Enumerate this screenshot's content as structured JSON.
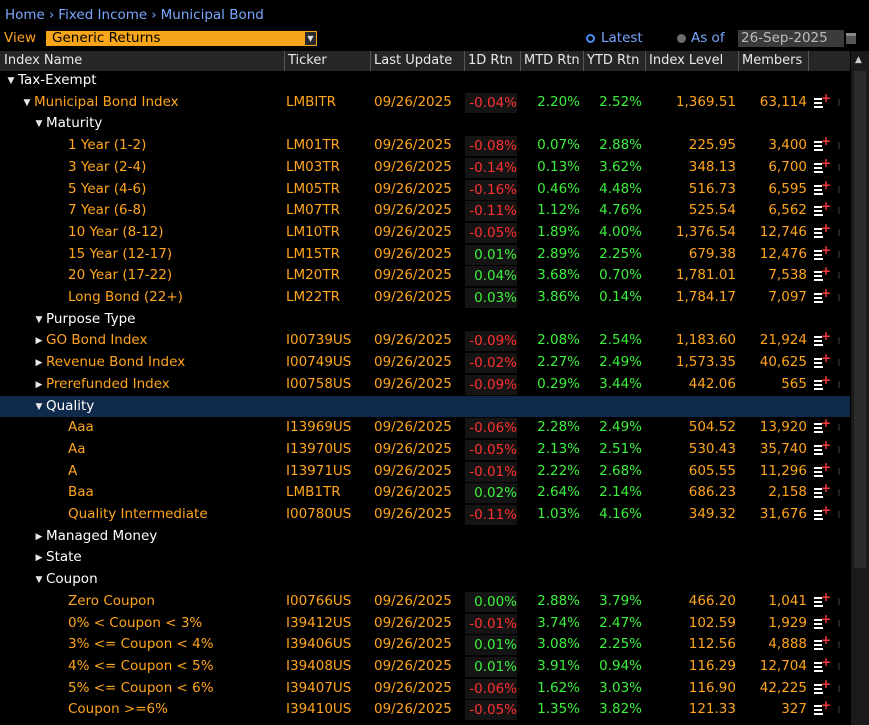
{
  "breadcrumb": [
    "Home",
    "Fixed Income",
    "Municipal Bond"
  ],
  "breadcrumb_sep": "›",
  "view": {
    "label": "View",
    "selected": "Generic Returns",
    "latest_label": "Latest",
    "asof_label": "As of",
    "date": "26-Sep-2025",
    "mode": "Latest"
  },
  "columns": [
    "Index Name",
    "Ticker",
    "Last Update",
    "1D Rtn",
    "MTD Rtn",
    "YTD Rtn",
    "Index Level",
    "Members"
  ],
  "colors": {
    "accent": "#ffa51e",
    "positive": "#3cf03c",
    "negative": "#ff3030",
    "link": "#7aa6ff",
    "selected": "#0f2a4a"
  },
  "rows": [
    {
      "level": 0,
      "type": "group",
      "expand": "down",
      "name": "Tax-Exempt"
    },
    {
      "level": 1,
      "type": "data",
      "expand": "down",
      "name": "Municipal Bond Index",
      "ticker": "LMBITR",
      "date": "09/26/2025",
      "d1": "-0.04%",
      "mtd": "2.20%",
      "ytd": "2.52%",
      "level_val": "1,369.51",
      "members": "63,114"
    },
    {
      "level": 2,
      "type": "group",
      "expand": "down",
      "name": "Maturity"
    },
    {
      "level": 3,
      "type": "data",
      "expand": "",
      "name": "1 Year (1-2)",
      "ticker": "LM01TR",
      "date": "09/26/2025",
      "d1": "-0.08%",
      "mtd": "0.07%",
      "ytd": "2.88%",
      "level_val": "225.95",
      "members": "3,400"
    },
    {
      "level": 3,
      "type": "data",
      "expand": "",
      "name": "3 Year (2-4)",
      "ticker": "LM03TR",
      "date": "09/26/2025",
      "d1": "-0.14%",
      "mtd": "0.13%",
      "ytd": "3.62%",
      "level_val": "348.13",
      "members": "6,700"
    },
    {
      "level": 3,
      "type": "data",
      "expand": "",
      "name": "5 Year (4-6)",
      "ticker": "LM05TR",
      "date": "09/26/2025",
      "d1": "-0.16%",
      "mtd": "0.46%",
      "ytd": "4.48%",
      "level_val": "516.73",
      "members": "6,595"
    },
    {
      "level": 3,
      "type": "data",
      "expand": "",
      "name": "7 Year (6-8)",
      "ticker": "LM07TR",
      "date": "09/26/2025",
      "d1": "-0.11%",
      "mtd": "1.12%",
      "ytd": "4.76%",
      "level_val": "525.54",
      "members": "6,562"
    },
    {
      "level": 3,
      "type": "data",
      "expand": "",
      "name": "10 Year (8-12)",
      "ticker": "LM10TR",
      "date": "09/26/2025",
      "d1": "-0.05%",
      "mtd": "1.89%",
      "ytd": "4.00%",
      "level_val": "1,376.54",
      "members": "12,746"
    },
    {
      "level": 3,
      "type": "data",
      "expand": "",
      "name": "15 Year (12-17)",
      "ticker": "LM15TR",
      "date": "09/26/2025",
      "d1": "0.01%",
      "mtd": "2.89%",
      "ytd": "2.25%",
      "level_val": "679.38",
      "members": "12,476"
    },
    {
      "level": 3,
      "type": "data",
      "expand": "",
      "name": "20 Year (17-22)",
      "ticker": "LM20TR",
      "date": "09/26/2025",
      "d1": "0.04%",
      "mtd": "3.68%",
      "ytd": "0.70%",
      "level_val": "1,781.01",
      "members": "7,538"
    },
    {
      "level": 3,
      "type": "data",
      "expand": "",
      "name": "Long Bond (22+)",
      "ticker": "LM22TR",
      "date": "09/26/2025",
      "d1": "0.03%",
      "mtd": "3.86%",
      "ytd": "0.14%",
      "level_val": "1,784.17",
      "members": "7,097"
    },
    {
      "level": 2,
      "type": "group",
      "expand": "down",
      "name": "Purpose Type"
    },
    {
      "level": 2,
      "type": "data",
      "expand": "right",
      "name": "GO Bond Index",
      "ticker": "I00739US",
      "date": "09/26/2025",
      "d1": "-0.09%",
      "mtd": "2.08%",
      "ytd": "2.54%",
      "level_val": "1,183.60",
      "members": "21,924"
    },
    {
      "level": 2,
      "type": "data",
      "expand": "right",
      "name": "Revenue Bond Index",
      "ticker": "I00749US",
      "date": "09/26/2025",
      "d1": "-0.02%",
      "mtd": "2.27%",
      "ytd": "2.49%",
      "level_val": "1,573.35",
      "members": "40,625"
    },
    {
      "level": 2,
      "type": "data",
      "expand": "right",
      "name": "Prerefunded Index",
      "ticker": "I00758US",
      "date": "09/26/2025",
      "d1": "-0.09%",
      "mtd": "0.29%",
      "ytd": "3.44%",
      "level_val": "442.06",
      "members": "565"
    },
    {
      "level": 2,
      "type": "group",
      "expand": "down",
      "name": "Quality",
      "selected": true
    },
    {
      "level": 3,
      "type": "data",
      "expand": "",
      "name": "Aaa",
      "ticker": "I13969US",
      "date": "09/26/2025",
      "d1": "-0.06%",
      "mtd": "2.28%",
      "ytd": "2.49%",
      "level_val": "504.52",
      "members": "13,920"
    },
    {
      "level": 3,
      "type": "data",
      "expand": "",
      "name": "Aa",
      "ticker": "I13970US",
      "date": "09/26/2025",
      "d1": "-0.05%",
      "mtd": "2.13%",
      "ytd": "2.51%",
      "level_val": "530.43",
      "members": "35,740"
    },
    {
      "level": 3,
      "type": "data",
      "expand": "",
      "name": "A",
      "ticker": "I13971US",
      "date": "09/26/2025",
      "d1": "-0.01%",
      "mtd": "2.22%",
      "ytd": "2.68%",
      "level_val": "605.55",
      "members": "11,296"
    },
    {
      "level": 3,
      "type": "data",
      "expand": "",
      "name": "Baa",
      "ticker": "LMB1TR",
      "date": "09/26/2025",
      "d1": "0.02%",
      "mtd": "2.64%",
      "ytd": "2.14%",
      "level_val": "686.23",
      "members": "2,158"
    },
    {
      "level": 3,
      "type": "data",
      "expand": "",
      "name": "Quality Intermediate",
      "ticker": "I00780US",
      "date": "09/26/2025",
      "d1": "-0.11%",
      "mtd": "1.03%",
      "ytd": "4.16%",
      "level_val": "349.32",
      "members": "31,676"
    },
    {
      "level": 2,
      "type": "group",
      "expand": "right",
      "name": "Managed Money"
    },
    {
      "level": 2,
      "type": "group",
      "expand": "right",
      "name": "State"
    },
    {
      "level": 2,
      "type": "group",
      "expand": "down",
      "name": "Coupon"
    },
    {
      "level": 3,
      "type": "data",
      "expand": "",
      "name": "Zero Coupon",
      "ticker": "I00766US",
      "date": "09/26/2025",
      "d1": "0.00%",
      "mtd": "2.88%",
      "ytd": "3.79%",
      "level_val": "466.20",
      "members": "1,041"
    },
    {
      "level": 3,
      "type": "data",
      "expand": "",
      "name": "0% < Coupon < 3%",
      "ticker": "I39412US",
      "date": "09/26/2025",
      "d1": "-0.01%",
      "mtd": "3.74%",
      "ytd": "2.47%",
      "level_val": "102.59",
      "members": "1,929"
    },
    {
      "level": 3,
      "type": "data",
      "expand": "",
      "name": "3% <= Coupon < 4%",
      "ticker": "I39406US",
      "date": "09/26/2025",
      "d1": "0.01%",
      "mtd": "3.08%",
      "ytd": "2.25%",
      "level_val": "112.56",
      "members": "4,888"
    },
    {
      "level": 3,
      "type": "data",
      "expand": "",
      "name": "4% <= Coupon < 5%",
      "ticker": "I39408US",
      "date": "09/26/2025",
      "d1": "0.01%",
      "mtd": "3.91%",
      "ytd": "0.94%",
      "level_val": "116.29",
      "members": "12,704"
    },
    {
      "level": 3,
      "type": "data",
      "expand": "",
      "name": "5% <= Coupon < 6%",
      "ticker": "I39407US",
      "date": "09/26/2025",
      "d1": "-0.06%",
      "mtd": "1.62%",
      "ytd": "3.03%",
      "level_val": "116.90",
      "members": "42,225"
    },
    {
      "level": 3,
      "type": "data",
      "expand": "",
      "name": "Coupon >=6%",
      "ticker": "I39410US",
      "date": "09/26/2025",
      "d1": "-0.05%",
      "mtd": "1.35%",
      "ytd": "3.82%",
      "level_val": "121.33",
      "members": "327"
    }
  ]
}
